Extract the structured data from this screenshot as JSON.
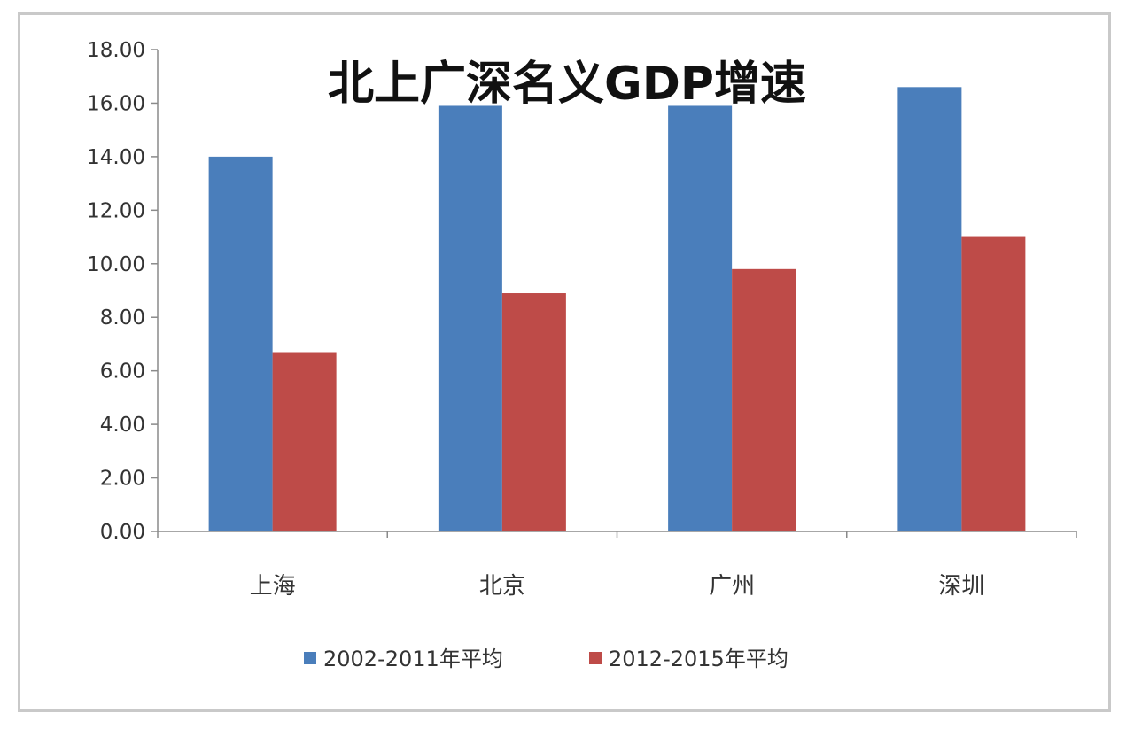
{
  "chart_data": {
    "type": "bar",
    "title": "北上广深名义GDP增速",
    "xlabel": "",
    "ylabel": "",
    "categories": [
      "上海",
      "北京",
      "广州",
      "深圳"
    ],
    "series": [
      {
        "name": "2002-2011年平均",
        "color": "#4a7ebb",
        "values": [
          14.0,
          15.9,
          15.9,
          16.6
        ]
      },
      {
        "name": "2012-2015年平均",
        "color": "#be4b48",
        "values": [
          6.7,
          8.9,
          9.8,
          11.0
        ]
      }
    ],
    "ylim": [
      0,
      18
    ],
    "yticks": [
      "0.00",
      "2.00",
      "4.00",
      "6.00",
      "8.00",
      "10.00",
      "12.00",
      "14.00",
      "16.00",
      "18.00"
    ],
    "grid": false,
    "legend_position": "bottom"
  }
}
